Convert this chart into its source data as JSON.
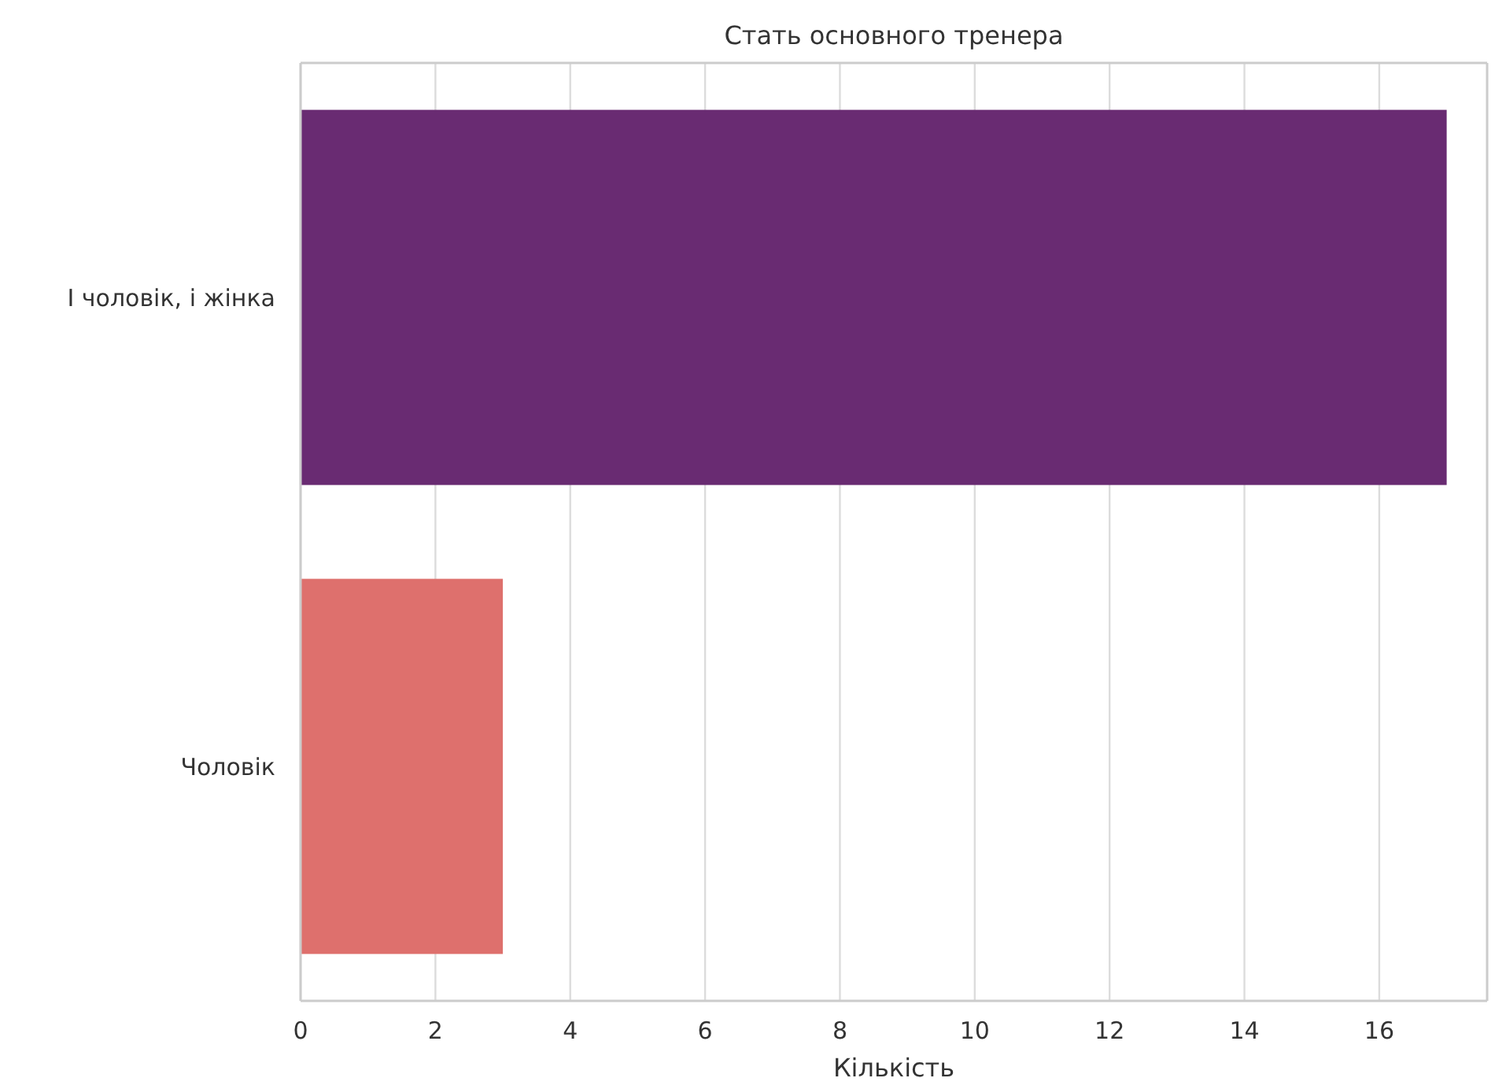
{
  "chart_data": {
    "type": "bar",
    "orientation": "horizontal",
    "title": "Стать основного тренера",
    "xlabel": "Кількість",
    "categories": [
      "І чоловік, і жінка",
      "Чоловік"
    ],
    "values": [
      17,
      3
    ],
    "colors": [
      "#692b72",
      "#de706d"
    ],
    "xlim": [
      0,
      17.6
    ],
    "xticks": [
      0,
      2,
      4,
      6,
      8,
      10,
      12,
      14,
      16
    ],
    "grid": "x"
  }
}
